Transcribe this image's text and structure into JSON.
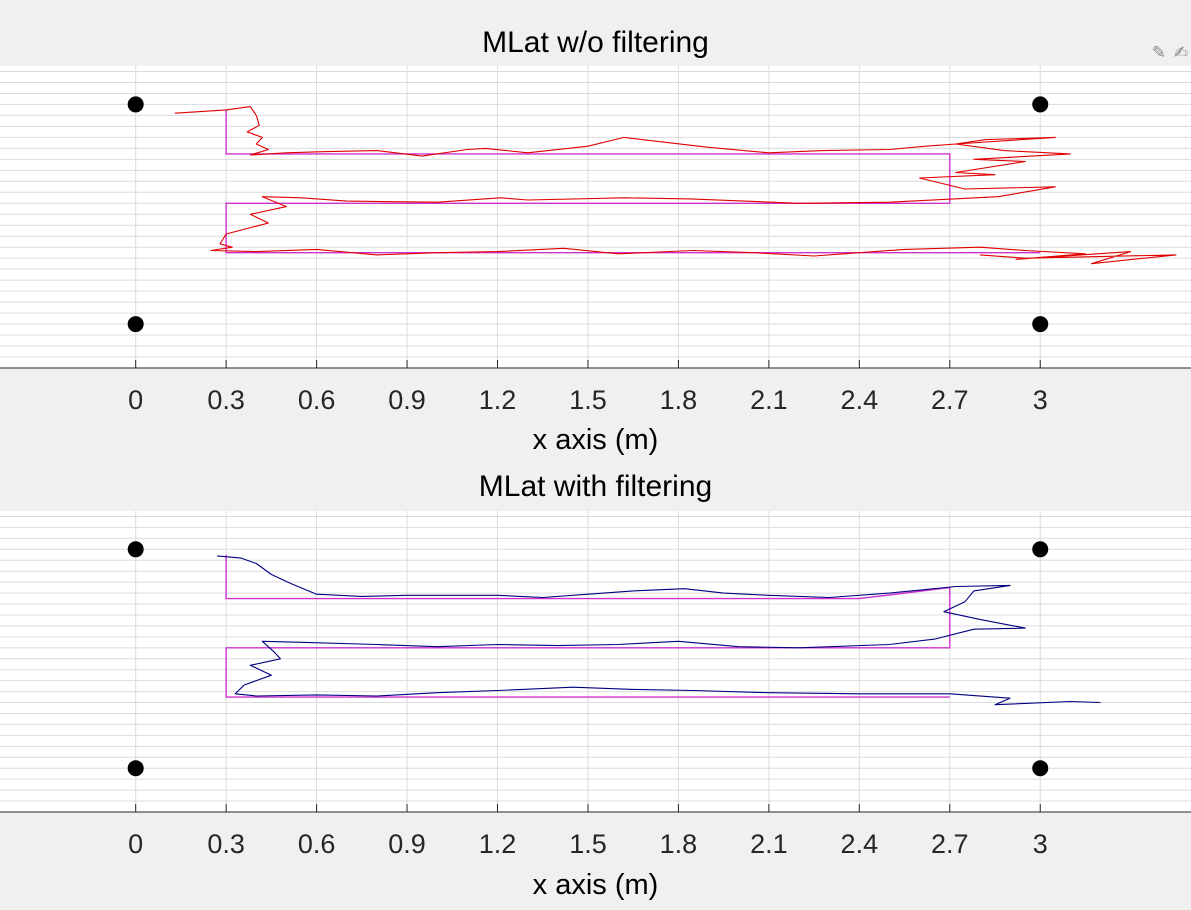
{
  "colors": {
    "figure_bg": "#f0f0f0",
    "axes_bg": "#ffffff",
    "grid": "#dcdcdc",
    "axis_line": "#262626",
    "reference": "#cc33cc",
    "raw_track": "#e00000",
    "filtered_track": "#00007f",
    "anchor": "#000000"
  },
  "toolbar": {
    "icons": [
      "edit-plot-icon",
      "brush-icon"
    ]
  },
  "chart_data": [
    {
      "type": "line",
      "title": "MLat w/o filtering",
      "xlabel": "x axis (m)",
      "ylabel": "",
      "xlim": [
        -0.45,
        3.5
      ],
      "ylim": [
        -0.2,
        2.55
      ],
      "x_ticks": [
        0,
        0.3,
        0.6,
        0.9,
        1.2,
        1.5,
        1.8,
        2.1,
        2.4,
        2.7,
        3
      ],
      "x_tick_labels": [
        "0",
        "0.3",
        "0.6",
        "0.9",
        "1.2",
        "1.5",
        "1.8",
        "2.1",
        "2.4",
        "2.7",
        "3"
      ],
      "grid": true,
      "anchors": [
        [
          0,
          2.2
        ],
        [
          3,
          2.2
        ],
        [
          0,
          0.2
        ],
        [
          3,
          0.2
        ]
      ],
      "reference_path": [
        [
          0.3,
          2.15
        ],
        [
          0.3,
          1.75
        ],
        [
          2.7,
          1.75
        ],
        [
          2.7,
          1.3
        ],
        [
          0.3,
          1.3
        ],
        [
          0.3,
          0.85
        ],
        [
          3.0,
          0.85
        ]
      ],
      "track": [
        [
          0.13,
          2.12
        ],
        [
          0.3,
          2.15
        ],
        [
          0.38,
          2.18
        ],
        [
          0.4,
          2.1
        ],
        [
          0.41,
          2.01
        ],
        [
          0.37,
          1.95
        ],
        [
          0.42,
          1.9
        ],
        [
          0.4,
          1.84
        ],
        [
          0.44,
          1.79
        ],
        [
          0.38,
          1.74
        ],
        [
          0.5,
          1.76
        ],
        [
          0.62,
          1.77
        ],
        [
          0.8,
          1.78
        ],
        [
          0.95,
          1.73
        ],
        [
          1.1,
          1.79
        ],
        [
          1.16,
          1.8
        ],
        [
          1.3,
          1.76
        ],
        [
          1.5,
          1.82
        ],
        [
          1.62,
          1.9
        ],
        [
          1.71,
          1.87
        ],
        [
          1.9,
          1.81
        ],
        [
          2.1,
          1.76
        ],
        [
          2.28,
          1.78
        ],
        [
          2.5,
          1.79
        ],
        [
          2.62,
          1.82
        ],
        [
          2.72,
          1.84
        ],
        [
          2.82,
          1.88
        ],
        [
          3.05,
          1.9
        ],
        [
          2.72,
          1.84
        ],
        [
          2.88,
          1.78
        ],
        [
          3.1,
          1.75
        ],
        [
          2.78,
          1.7
        ],
        [
          2.95,
          1.68
        ],
        [
          2.72,
          1.58
        ],
        [
          2.85,
          1.56
        ],
        [
          2.6,
          1.53
        ],
        [
          2.75,
          1.43
        ],
        [
          3.05,
          1.45
        ],
        [
          2.86,
          1.36
        ],
        [
          2.5,
          1.31
        ],
        [
          2.2,
          1.3
        ],
        [
          1.84,
          1.34
        ],
        [
          1.62,
          1.35
        ],
        [
          1.3,
          1.33
        ],
        [
          1.21,
          1.35
        ],
        [
          1.0,
          1.31
        ],
        [
          0.7,
          1.32
        ],
        [
          0.55,
          1.35
        ],
        [
          0.42,
          1.36
        ],
        [
          0.5,
          1.27
        ],
        [
          0.38,
          1.2
        ],
        [
          0.44,
          1.12
        ],
        [
          0.3,
          1.02
        ],
        [
          0.28,
          0.93
        ],
        [
          0.32,
          0.9
        ],
        [
          0.25,
          0.87
        ],
        [
          0.4,
          0.86
        ],
        [
          0.6,
          0.88
        ],
        [
          0.8,
          0.83
        ],
        [
          1.0,
          0.85
        ],
        [
          1.2,
          0.86
        ],
        [
          1.42,
          0.89
        ],
        [
          1.6,
          0.84
        ],
        [
          1.85,
          0.87
        ],
        [
          2.05,
          0.85
        ],
        [
          2.25,
          0.82
        ],
        [
          2.55,
          0.88
        ],
        [
          2.8,
          0.9
        ],
        [
          2.95,
          0.87
        ],
        [
          3.15,
          0.84
        ],
        [
          2.92,
          0.79
        ],
        [
          3.3,
          0.86
        ],
        [
          3.17,
          0.75
        ],
        [
          3.45,
          0.83
        ],
        [
          2.95,
          0.8
        ],
        [
          2.8,
          0.83
        ]
      ]
    },
    {
      "type": "line",
      "title": "MLat with filtering",
      "xlabel": "x axis (m)",
      "ylabel": "",
      "xlim": [
        -0.45,
        3.5
      ],
      "ylim": [
        -0.2,
        2.55
      ],
      "x_ticks": [
        0,
        0.3,
        0.6,
        0.9,
        1.2,
        1.5,
        1.8,
        2.1,
        2.4,
        2.7,
        3
      ],
      "x_tick_labels": [
        "0",
        "0.3",
        "0.6",
        "0.9",
        "1.2",
        "1.5",
        "1.8",
        "2.1",
        "2.4",
        "2.7",
        "3"
      ],
      "grid": true,
      "anchors": [
        [
          0,
          2.2
        ],
        [
          3,
          2.2
        ],
        [
          0,
          0.2
        ],
        [
          3,
          0.2
        ]
      ],
      "reference_path": [
        [
          0.3,
          2.15
        ],
        [
          0.3,
          1.75
        ],
        [
          2.4,
          1.75
        ],
        [
          2.7,
          1.85
        ],
        [
          2.7,
          1.3
        ],
        [
          0.3,
          1.3
        ],
        [
          0.3,
          0.85
        ],
        [
          2.7,
          0.85
        ]
      ],
      "track": [
        [
          0.27,
          2.14
        ],
        [
          0.35,
          2.12
        ],
        [
          0.4,
          2.07
        ],
        [
          0.45,
          1.97
        ],
        [
          0.52,
          1.88
        ],
        [
          0.6,
          1.79
        ],
        [
          0.75,
          1.77
        ],
        [
          0.9,
          1.78
        ],
        [
          1.2,
          1.78
        ],
        [
          1.35,
          1.76
        ],
        [
          1.5,
          1.79
        ],
        [
          1.65,
          1.82
        ],
        [
          1.82,
          1.84
        ],
        [
          1.95,
          1.8
        ],
        [
          2.1,
          1.78
        ],
        [
          2.3,
          1.76
        ],
        [
          2.5,
          1.8
        ],
        [
          2.72,
          1.86
        ],
        [
          2.9,
          1.87
        ],
        [
          2.78,
          1.82
        ],
        [
          2.75,
          1.72
        ],
        [
          2.68,
          1.63
        ],
        [
          2.8,
          1.56
        ],
        [
          2.95,
          1.48
        ],
        [
          2.78,
          1.47
        ],
        [
          2.65,
          1.38
        ],
        [
          2.5,
          1.33
        ],
        [
          2.2,
          1.3
        ],
        [
          2.0,
          1.31
        ],
        [
          1.8,
          1.36
        ],
        [
          1.6,
          1.33
        ],
        [
          1.4,
          1.32
        ],
        [
          1.2,
          1.33
        ],
        [
          1.0,
          1.31
        ],
        [
          0.8,
          1.33
        ],
        [
          0.55,
          1.35
        ],
        [
          0.42,
          1.36
        ],
        [
          0.46,
          1.26
        ],
        [
          0.48,
          1.2
        ],
        [
          0.38,
          1.14
        ],
        [
          0.45,
          1.05
        ],
        [
          0.36,
          0.96
        ],
        [
          0.33,
          0.88
        ],
        [
          0.4,
          0.86
        ],
        [
          0.6,
          0.87
        ],
        [
          0.8,
          0.86
        ],
        [
          1.0,
          0.89
        ],
        [
          1.2,
          0.91
        ],
        [
          1.45,
          0.94
        ],
        [
          1.65,
          0.92
        ],
        [
          1.85,
          0.91
        ],
        [
          2.1,
          0.89
        ],
        [
          2.4,
          0.88
        ],
        [
          2.7,
          0.88
        ],
        [
          2.9,
          0.84
        ],
        [
          2.85,
          0.78
        ],
        [
          3.1,
          0.81
        ],
        [
          3.2,
          0.8
        ]
      ]
    }
  ]
}
